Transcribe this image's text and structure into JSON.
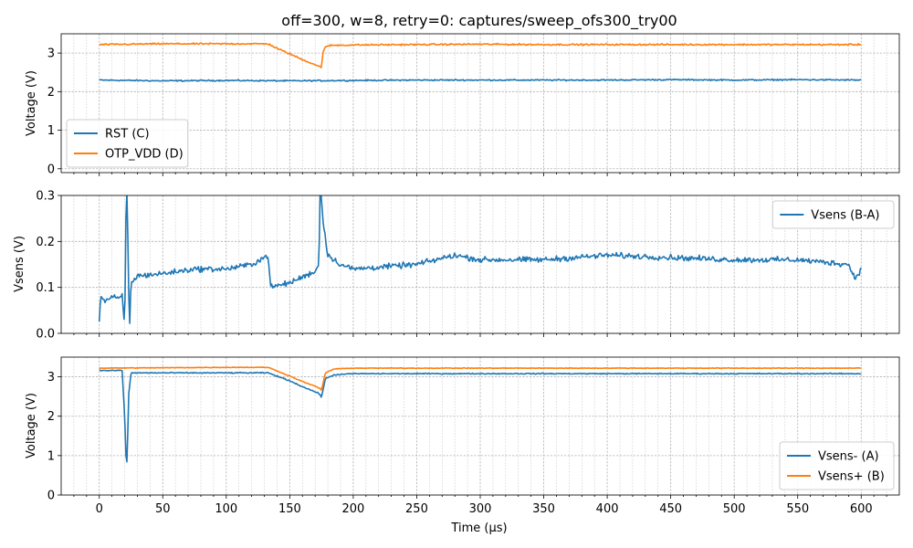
{
  "chart_data": {
    "type": "line",
    "title": "off=300, w=8, retry=0: captures/sweep_ofs300_try00",
    "xlabel": "Time (µs)",
    "xlim": [
      -30,
      630
    ],
    "x_ticks": [
      0,
      50,
      100,
      150,
      200,
      250,
      300,
      350,
      400,
      450,
      500,
      550,
      600
    ],
    "x_minor_step": 10,
    "grid": true,
    "colors": {
      "blue": "#1f77b4",
      "orange": "#ff7f0e"
    },
    "panels": [
      {
        "ylabel": "Voltage (V)",
        "ylim": [
          -0.1,
          3.5
        ],
        "y_ticks": [
          0,
          1,
          2,
          3
        ],
        "legend_position": "bottom-left",
        "series": [
          {
            "name": "RST (C)",
            "color": "#1f77b4",
            "points": [
              [
                0,
                2.3
              ],
              [
                50,
                2.28
              ],
              [
                100,
                2.29
              ],
              [
                150,
                2.28
              ],
              [
                200,
                2.29
              ],
              [
                250,
                2.3
              ],
              [
                300,
                2.3
              ],
              [
                350,
                2.3
              ],
              [
                400,
                2.3
              ],
              [
                450,
                2.31
              ],
              [
                500,
                2.3
              ],
              [
                550,
                2.31
              ],
              [
                600,
                2.3
              ]
            ],
            "noise": 0.025
          },
          {
            "name": "OTP_VDD (D)",
            "color": "#ff7f0e",
            "points": [
              [
                0,
                3.22
              ],
              [
                50,
                3.24
              ],
              [
                100,
                3.24
              ],
              [
                133,
                3.24
              ],
              [
                140,
                3.12
              ],
              [
                150,
                2.98
              ],
              [
                160,
                2.83
              ],
              [
                170,
                2.7
              ],
              [
                174,
                2.64
              ],
              [
                175,
                2.62
              ],
              [
                176,
                3.02
              ],
              [
                178,
                3.15
              ],
              [
                182,
                3.2
              ],
              [
                200,
                3.21
              ],
              [
                250,
                3.22
              ],
              [
                300,
                3.23
              ],
              [
                350,
                3.22
              ],
              [
                400,
                3.22
              ],
              [
                450,
                3.22
              ],
              [
                500,
                3.22
              ],
              [
                550,
                3.22
              ],
              [
                600,
                3.22
              ]
            ],
            "noise": 0.03
          }
        ]
      },
      {
        "ylabel": "Vsens (V)",
        "ylim": [
          0.0,
          0.3
        ],
        "y_ticks": [
          0.0,
          0.1,
          0.2,
          0.3
        ],
        "legend_position": "top-right",
        "series": [
          {
            "name": "Vsens (B-A)",
            "color": "#1f77b4",
            "points": [
              [
                0,
                0.03
              ],
              [
                1,
                0.08
              ],
              [
                5,
                0.07
              ],
              [
                10,
                0.08
              ],
              [
                15,
                0.075
              ],
              [
                18,
                0.08
              ],
              [
                20,
                0.015
              ],
              [
                21,
                0.25
              ],
              [
                22,
                0.32
              ],
              [
                23,
                0.1
              ],
              [
                24,
                0.02
              ],
              [
                25,
                0.11
              ],
              [
                30,
                0.125
              ],
              [
                50,
                0.13
              ],
              [
                75,
                0.14
              ],
              [
                100,
                0.14
              ],
              [
                120,
                0.15
              ],
              [
                133,
                0.17
              ],
              [
                135,
                0.1
              ],
              [
                150,
                0.11
              ],
              [
                170,
                0.135
              ],
              [
                173,
                0.15
              ],
              [
                174,
                0.33
              ],
              [
                176,
                0.25
              ],
              [
                180,
                0.17
              ],
              [
                190,
                0.15
              ],
              [
                200,
                0.14
              ],
              [
                250,
                0.15
              ],
              [
                280,
                0.17
              ],
              [
                300,
                0.16
              ],
              [
                350,
                0.16
              ],
              [
                400,
                0.17
              ],
              [
                450,
                0.165
              ],
              [
                500,
                0.16
              ],
              [
                550,
                0.16
              ],
              [
                590,
                0.15
              ],
              [
                595,
                0.12
              ],
              [
                600,
                0.14
              ]
            ],
            "noise": 0.009
          }
        ]
      },
      {
        "ylabel": "Voltage (V)",
        "ylim": [
          0,
          3.5
        ],
        "y_ticks": [
          0,
          1,
          2,
          3
        ],
        "legend_position": "bottom-right",
        "series": [
          {
            "name": "Vsens- (A)",
            "color": "#1f77b4",
            "points": [
              [
                0,
                3.16
              ],
              [
                18,
                3.16
              ],
              [
                20,
                2.0
              ],
              [
                21,
                1.0
              ],
              [
                22,
                0.78
              ],
              [
                23,
                2.5
              ],
              [
                25,
                3.1
              ],
              [
                50,
                3.1
              ],
              [
                100,
                3.1
              ],
              [
                133,
                3.1
              ],
              [
                150,
                2.9
              ],
              [
                160,
                2.75
              ],
              [
                170,
                2.62
              ],
              [
                174,
                2.55
              ],
              [
                175,
                2.48
              ],
              [
                178,
                2.95
              ],
              [
                185,
                3.05
              ],
              [
                200,
                3.08
              ],
              [
                300,
                3.08
              ],
              [
                400,
                3.08
              ],
              [
                500,
                3.08
              ],
              [
                600,
                3.08
              ]
            ],
            "noise": 0.02
          },
          {
            "name": "Vsens+ (B)",
            "color": "#ff7f0e",
            "points": [
              [
                0,
                3.22
              ],
              [
                50,
                3.23
              ],
              [
                100,
                3.24
              ],
              [
                133,
                3.24
              ],
              [
                150,
                3.02
              ],
              [
                160,
                2.88
              ],
              [
                170,
                2.76
              ],
              [
                174,
                2.7
              ],
              [
                175,
                2.66
              ],
              [
                178,
                3.1
              ],
              [
                185,
                3.2
              ],
              [
                200,
                3.22
              ],
              [
                300,
                3.22
              ],
              [
                400,
                3.22
              ],
              [
                500,
                3.22
              ],
              [
                600,
                3.22
              ]
            ],
            "noise": 0.012
          }
        ]
      }
    ]
  }
}
